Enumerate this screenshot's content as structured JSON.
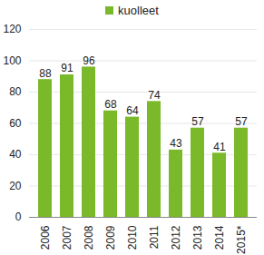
{
  "chart_data": {
    "type": "bar",
    "categories": [
      "2006",
      "2007",
      "2008",
      "2009",
      "2010",
      "2011",
      "2012",
      "2013",
      "2014",
      "2015*"
    ],
    "series": [
      {
        "name": "kuolleet",
        "color": "#7ab929",
        "values": [
          88,
          91,
          96,
          68,
          64,
          74,
          43,
          57,
          41,
          57
        ]
      }
    ],
    "ylim": [
      0,
      120
    ],
    "yticks": [
      0,
      20,
      40,
      60,
      80,
      100,
      120
    ],
    "grid": true,
    "legend": "top",
    "data_labels": true
  }
}
